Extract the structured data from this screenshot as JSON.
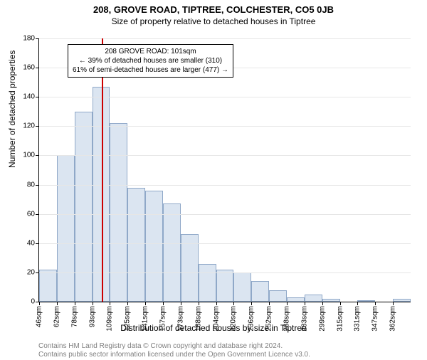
{
  "titles": {
    "line1": "208, GROVE ROAD, TIPTREE, COLCHESTER, CO5 0JB",
    "line2": "Size of property relative to detached houses in Tiptree"
  },
  "y_axis": {
    "label": "Number of detached properties",
    "min": 0,
    "max": 180,
    "step": 20,
    "ticks": [
      0,
      20,
      40,
      60,
      80,
      100,
      120,
      140,
      160,
      180
    ]
  },
  "x_axis": {
    "label": "Distribution of detached houses by size in Tiptree",
    "labels": [
      "46sqm",
      "62sqm",
      "78sqm",
      "93sqm",
      "109sqm",
      "125sqm",
      "141sqm",
      "157sqm",
      "173sqm",
      "188sqm",
      "204sqm",
      "220sqm",
      "236sqm",
      "252sqm",
      "268sqm",
      "283sqm",
      "299sqm",
      "315sqm",
      "331sqm",
      "347sqm",
      "362sqm"
    ]
  },
  "bars": {
    "values": [
      22,
      100,
      130,
      147,
      122,
      78,
      76,
      67,
      46,
      26,
      22,
      20,
      14,
      8,
      3,
      5,
      2,
      0,
      1,
      0,
      2
    ],
    "fill_color": "#dbe5f1",
    "border_color": "#8fa8c8"
  },
  "marker": {
    "color": "#cc0000",
    "bin_index": 3,
    "position_in_bin": 0.55
  },
  "annotation": {
    "line1": "208 GROVE ROAD: 101sqm",
    "line2": "← 39% of detached houses are smaller (310)",
    "line3": "61% of semi-detached houses are larger (477) →"
  },
  "footer": {
    "line1": "Contains HM Land Registry data © Crown copyright and database right 2024.",
    "line2": "Contains public sector information licensed under the Open Government Licence v3.0."
  },
  "style": {
    "grid_color": "#e6e6e6",
    "background": "#ffffff",
    "title_fontsize": 13,
    "subtitle_fontsize": 12,
    "axis_fontsize": 12,
    "tick_fontsize": 10,
    "footer_color": "#808080"
  }
}
